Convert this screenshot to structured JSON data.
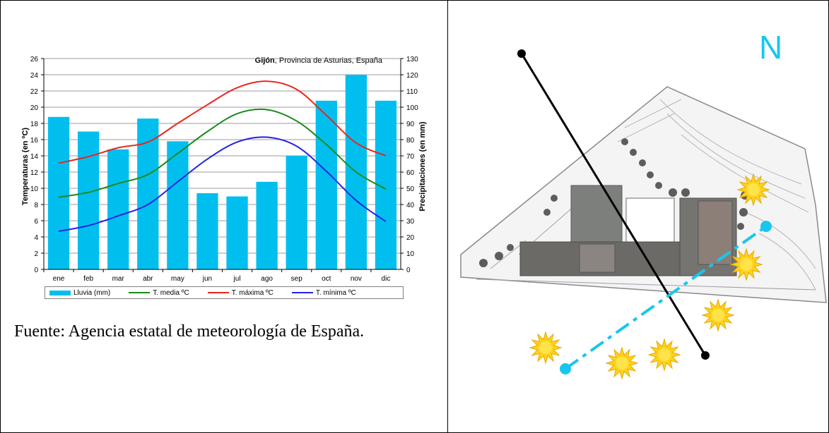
{
  "caption": "Fuente: Agencia estatal de meteorología de España.",
  "chart_data": {
    "type": "bar",
    "title_bold": "Gijón",
    "title_rest": ", Provincia de Asturias, España",
    "ylabel": "Temperaturas (en ºC)",
    "y2label": "Precipitaciones (en mm)",
    "ylim": [
      0,
      26
    ],
    "y2lim": [
      0,
      130
    ],
    "yticks": [
      0,
      2,
      4,
      6,
      8,
      10,
      12,
      14,
      16,
      18,
      20,
      22,
      24,
      26
    ],
    "y2ticks": [
      0,
      10,
      20,
      30,
      40,
      50,
      60,
      70,
      80,
      90,
      100,
      110,
      120,
      130
    ],
    "grid": true,
    "categories": [
      "ene",
      "feb",
      "mar",
      "abr",
      "may",
      "jun",
      "jul",
      "ago",
      "sep",
      "oct",
      "nov",
      "dic"
    ],
    "bars": {
      "name": "Lluvia (mm)",
      "color": "#00bfef",
      "axis": "right",
      "values": [
        94,
        85,
        74,
        93,
        79,
        47,
        45,
        54,
        70,
        104,
        120,
        104
      ]
    },
    "series": [
      {
        "name": "T. media ºC",
        "color": "#1a8a1a",
        "values": [
          8.9,
          9.5,
          10.6,
          11.7,
          14.3,
          17.0,
          19.2,
          19.7,
          18.3,
          15.4,
          12.0,
          9.9
        ]
      },
      {
        "name": "T. máxima ºC",
        "color": "#e8271d",
        "values": [
          13.1,
          13.9,
          15.0,
          15.7,
          18.0,
          20.3,
          22.4,
          23.2,
          22.2,
          19.0,
          15.6,
          14.0
        ]
      },
      {
        "name": "T. mínima ºC",
        "color": "#2323e6",
        "values": [
          4.7,
          5.4,
          6.6,
          8.0,
          10.8,
          13.6,
          15.7,
          16.3,
          15.2,
          12.1,
          8.5,
          5.9
        ]
      }
    ]
  },
  "site_plan": {
    "north_label": "N",
    "north_color": "#18c6f0",
    "sun_path_color": "#18c6f0",
    "sun_color": "#ffd21a",
    "axis_line_color": "#000000"
  }
}
